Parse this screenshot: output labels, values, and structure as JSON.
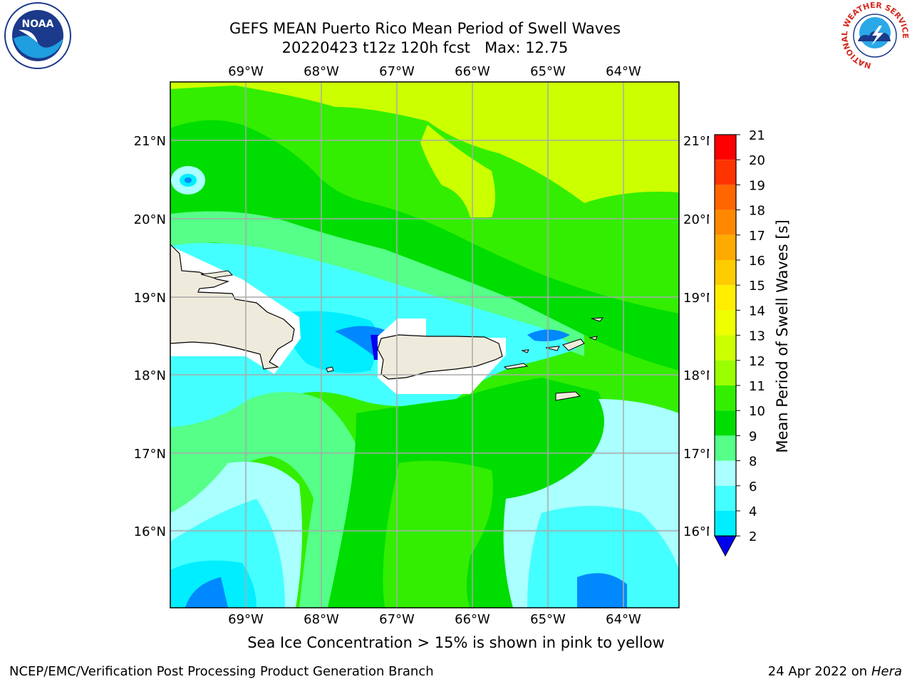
{
  "header": {
    "title_line1": "GEFS MEAN Puerto Rico Mean Period of Swell Waves",
    "title_line2": "20220423 t12z 120h fcst   Max: 12.75"
  },
  "logos": {
    "left": {
      "icon": "noaa-logo-icon",
      "text": "NOAA"
    },
    "right": {
      "icon": "nws-logo-icon",
      "ring_text": "NATIONAL WEATHER SERVICE"
    }
  },
  "map": {
    "lon_labels": [
      "69°W",
      "68°W",
      "67°W",
      "66°W",
      "65°W",
      "64°W"
    ],
    "lat_labels": [
      "21°N",
      "20°N",
      "19°N",
      "18°N",
      "17°N",
      "16°N"
    ],
    "lon_range": [
      -70,
      -63.3
    ],
    "lat_range": [
      15,
      21.75
    ]
  },
  "colorbar": {
    "label": "Mean Period of Swell Waves [s]",
    "ticks": [
      "21",
      "20",
      "19",
      "18",
      "17",
      "16",
      "15",
      "14",
      "13",
      "12",
      "11",
      "10",
      "9",
      "8",
      "6",
      "4",
      "2"
    ],
    "colors": [
      "#ff0000",
      "#ff3300",
      "#ff6600",
      "#ff8800",
      "#ffaa00",
      "#ffcc00",
      "#ffee00",
      "#eeff00",
      "#ccff00",
      "#99ff00",
      "#33ee00",
      "#00dd00",
      "#55ff88",
      "#aaffff",
      "#44ffff",
      "#00eeff",
      "#0088ff",
      "#0000ee"
    ]
  },
  "notes": {
    "ice": "Sea Ice Concentration > 15% is shown in pink to yellow"
  },
  "footer": {
    "left": "NCEP/EMC/Verification Post Processing Product Generation Branch",
    "date": "24 Apr 2022 on",
    "machine": "Hera"
  }
}
